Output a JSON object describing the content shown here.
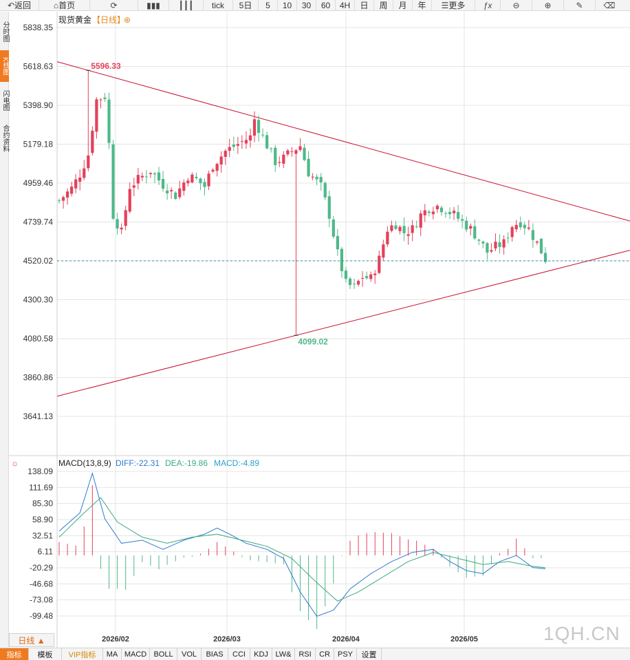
{
  "toolbar": {
    "back_label": "返回",
    "home_label": "首页",
    "tick_label": "tick",
    "periods": [
      "5日",
      "5",
      "10",
      "30",
      "60",
      "4H",
      "日",
      "周",
      "月",
      "年"
    ],
    "more_label": "更多"
  },
  "side_tabs": [
    "分时图",
    "K线图",
    "闪电图",
    "合约资料"
  ],
  "chart_header": {
    "name": "现货黄金",
    "period": "【日线】",
    "zoom": "⊕"
  },
  "macd_header": {
    "name": "MACD(13,8,9)",
    "diff": "DIFF:-22.31",
    "dea": "DEA:-19.86",
    "macd": "MACD:-4.89"
  },
  "colors": {
    "up": "#e5405b",
    "down": "#4fb889",
    "trend": "#c8102e",
    "diff": "#2f78d0",
    "dea": "#3aaa7e",
    "last": "#2a8ca8",
    "grid": "#e4e4e4"
  },
  "chart_data": [
    {
      "type": "candlestick",
      "y_ticks": [
        "5838.35",
        "5618.63",
        "5398.90",
        "5179.18",
        "4959.46",
        "4739.74",
        "4520.02",
        "4300.30",
        "4080.58",
        "3860.86",
        "3641.13"
      ],
      "ylim": [
        3641.13,
        5838.35
      ],
      "x_ticks": [
        "2026/02",
        "2026/03",
        "2026/04",
        "2026/05"
      ],
      "annotations": [
        {
          "label": "5596.33",
          "value": 5596.33,
          "type": "high"
        },
        {
          "label": "4099.02",
          "value": 4099.02,
          "type": "low"
        }
      ],
      "reference_line": {
        "value": 4520.02,
        "style": "dashed"
      },
      "trendlines": [
        {
          "name": "upper",
          "from": "high",
          "direction": "down"
        },
        {
          "name": "lower",
          "from": "low",
          "direction": "up"
        }
      ]
    },
    {
      "type": "bar+line",
      "title": "MACD(13,8,9)",
      "y_ticks": [
        "138.09",
        "111.69",
        "85.30",
        "58.90",
        "32.51",
        "6.11",
        "-20.29",
        "-46.68",
        "-73.08",
        "-99.48"
      ],
      "ylim": [
        -125,
        138.09
      ],
      "series": [
        {
          "name": "DIFF",
          "value": -22.31
        },
        {
          "name": "DEA",
          "value": -19.86
        },
        {
          "name": "MACD",
          "value": -4.89
        }
      ]
    }
  ],
  "bottom": {
    "period_tab": "日线 ▲",
    "items": [
      "指标",
      "模板",
      "VIP指标",
      "MA",
      "MACD",
      "BOLL",
      "VOL",
      "BIAS",
      "CCI",
      "KDJ",
      "LW&",
      "RSI",
      "CR",
      "PSY",
      "设置"
    ]
  },
  "watermark": "1QH.CN"
}
